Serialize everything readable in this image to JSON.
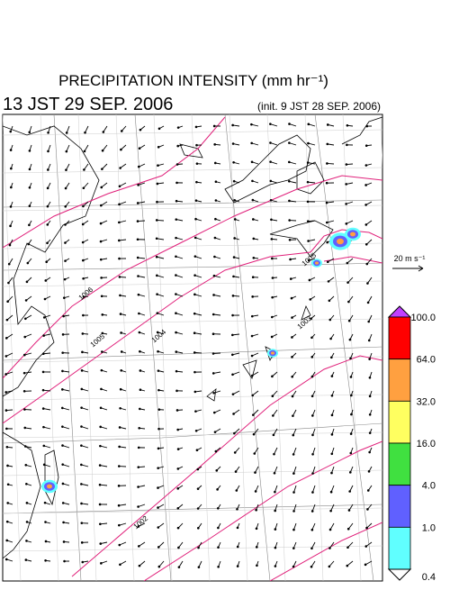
{
  "header": {
    "title": "PRECIPITATION INTENSITY (mm hr⁻¹)",
    "valid_time": "13 JST 29 SEP. 2006",
    "init_time": "(init. 9 JST 28 SEP. 2006)"
  },
  "vector_legend": {
    "label": "20 m s⁻¹"
  },
  "contour_labels": [
    "1005",
    "1006",
    "1005",
    "1004",
    "1003",
    "1002"
  ],
  "colorbar": {
    "levels": [
      {
        "label": "100.0",
        "color": "#ff0000"
      },
      {
        "label": "64.0",
        "color": "#ffa040"
      },
      {
        "label": "32.0",
        "color": "#ffff60"
      },
      {
        "label": "16.0",
        "color": "#40e040"
      },
      {
        "label": "4.0",
        "color": "#6060ff"
      },
      {
        "label": "1.0",
        "color": "#60ffff"
      },
      {
        "label": "0.4",
        "color": "#ffffff"
      }
    ],
    "top_color": "#c040ff"
  }
}
